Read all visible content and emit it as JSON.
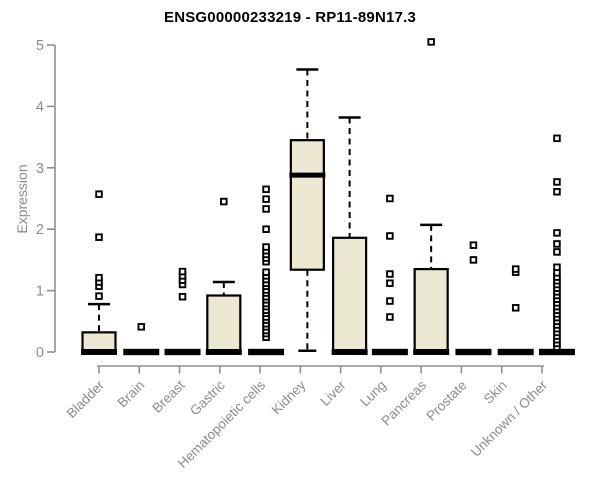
{
  "style": {
    "background": "#ffffff",
    "box_fill": "#EDE8D1",
    "box_stroke": "#000000",
    "axis_color": "#8f8f8f",
    "label_color": "#8c8c8c",
    "title_color": "#000000",
    "outlier_color": "#000000"
  },
  "chart_data": {
    "type": "box",
    "title": "ENSG00000233219 - RP11-89N17.3",
    "xlabel": "",
    "ylabel": "Expression",
    "ylim": [
      0,
      5
    ],
    "yticks": [
      0,
      1,
      2,
      3,
      4,
      5
    ],
    "grid": false,
    "legend": "none",
    "categories": [
      "Bladder",
      "Brain",
      "Breast",
      "Gastric",
      "Hematopoietic cells",
      "Kidney",
      "Liver",
      "Lung",
      "Pancreas",
      "Prostate",
      "Skin",
      "Unknown / Other"
    ],
    "boxes": [
      {
        "label": "Bladder",
        "q1": 0,
        "median": 0,
        "q3": 0.32,
        "whisker_low": 0,
        "whisker_high": 0.78,
        "dx": 0,
        "outliers": [
          0.91,
          1.07,
          1.14,
          1.21,
          1.87,
          2.57
        ]
      },
      {
        "label": "Brain",
        "q1": 0,
        "median": 0,
        "q3": 0,
        "whisker_low": 0,
        "whisker_high": 0,
        "dx": 2,
        "outliers": [
          0.41
        ]
      },
      {
        "label": "Breast",
        "q1": 0,
        "median": 0,
        "q3": 0,
        "whisker_low": 0,
        "whisker_high": 0,
        "dx": 3,
        "outliers": [
          0.9,
          1.1,
          1.17,
          1.24,
          1.31
        ]
      },
      {
        "label": "Gastric",
        "q1": 0,
        "median": 0,
        "q3": 0.92,
        "whisker_low": 0,
        "whisker_high": 1.14,
        "dx": 4,
        "outliers": [
          2.45
        ]
      },
      {
        "label": "Hematopoietic cells",
        "q1": 0,
        "median": 0,
        "q3": 0,
        "whisker_low": 0,
        "whisker_high": 0,
        "dx": 6,
        "outliers": [
          0.24,
          0.3,
          0.35,
          0.41,
          0.46,
          0.52,
          0.57,
          0.63,
          0.68,
          0.74,
          0.79,
          0.85,
          0.9,
          0.96,
          1.01,
          1.07,
          1.12,
          1.18,
          1.24,
          1.3,
          1.47,
          1.53,
          1.59,
          1.65,
          1.71,
          2.0,
          2.33,
          2.49,
          2.65
        ]
      },
      {
        "label": "Kidney",
        "q1": 1.34,
        "median": 2.88,
        "q3": 3.45,
        "whisker_low": 0.02,
        "whisker_high": 4.6,
        "dx": 7,
        "outliers": []
      },
      {
        "label": "Liver",
        "q1": 0,
        "median": 0,
        "q3": 1.86,
        "whisker_low": 0,
        "whisker_high": 3.82,
        "dx": 9,
        "outliers": []
      },
      {
        "label": "Lung",
        "q1": 0,
        "median": 0,
        "q3": 0,
        "whisker_low": 0,
        "whisker_high": 0,
        "dx": 9,
        "outliers": [
          0.57,
          0.83,
          1.12,
          1.27,
          1.89,
          2.5
        ]
      },
      {
        "label": "Pancreas",
        "q1": 0,
        "median": 0,
        "q3": 1.35,
        "whisker_low": 0,
        "whisker_high": 2.07,
        "dx": 10,
        "outliers": [
          5.05
        ]
      },
      {
        "label": "Prostate",
        "q1": 0,
        "median": 0,
        "q3": 0,
        "whisker_low": 0,
        "whisker_high": 0,
        "dx": 12,
        "outliers": [
          1.5,
          1.74
        ]
      },
      {
        "label": "Skin",
        "q1": 0,
        "median": 0,
        "q3": 0,
        "whisker_low": 0,
        "whisker_high": 0,
        "dx": 14,
        "outliers": [
          0.72,
          1.3,
          1.35
        ]
      },
      {
        "label": "Unknown / Other",
        "q1": 0,
        "median": 0,
        "q3": 0,
        "whisker_low": 0,
        "whisker_high": 0,
        "dx": 15,
        "outliers": [
          0.08,
          0.14,
          0.2,
          0.26,
          0.32,
          0.38,
          0.44,
          0.5,
          0.56,
          0.62,
          0.68,
          0.74,
          0.8,
          0.86,
          0.92,
          0.98,
          1.04,
          1.1,
          1.16,
          1.22,
          1.29,
          1.38,
          1.63,
          1.76,
          1.94,
          2.61,
          2.77,
          3.48
        ]
      }
    ]
  }
}
